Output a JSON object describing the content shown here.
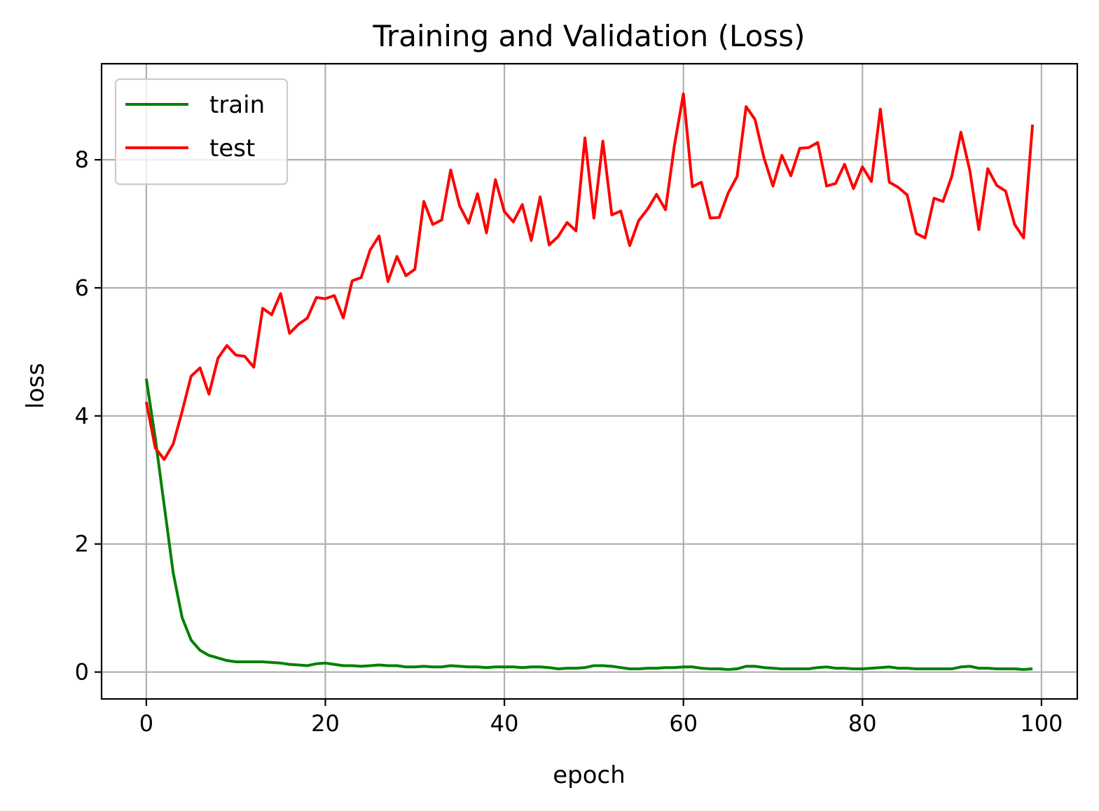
{
  "chart_data": {
    "type": "line",
    "title": "Training and Validation (Loss)",
    "xlabel": "epoch",
    "ylabel": "loss",
    "xlim": [
      -5,
      104
    ],
    "ylim": [
      -0.42,
      9.5
    ],
    "xticks": [
      0,
      20,
      40,
      60,
      80,
      100
    ],
    "yticks": [
      0,
      2,
      4,
      6,
      8
    ],
    "grid": true,
    "legend_position": "top-left",
    "series": [
      {
        "name": "train",
        "color": "#008000",
        "x": [
          0,
          1,
          2,
          3,
          4,
          5,
          6,
          7,
          8,
          9,
          10,
          11,
          12,
          13,
          14,
          15,
          16,
          17,
          18,
          19,
          20,
          21,
          22,
          23,
          24,
          25,
          26,
          27,
          28,
          29,
          30,
          31,
          32,
          33,
          34,
          35,
          36,
          37,
          38,
          39,
          40,
          41,
          42,
          43,
          44,
          45,
          46,
          47,
          48,
          49,
          50,
          51,
          52,
          53,
          54,
          55,
          56,
          57,
          58,
          59,
          60,
          61,
          62,
          63,
          64,
          65,
          66,
          67,
          68,
          69,
          70,
          71,
          72,
          73,
          74,
          75,
          76,
          77,
          78,
          79,
          80,
          81,
          82,
          83,
          84,
          85,
          86,
          87,
          88,
          89,
          90,
          91,
          92,
          93,
          94,
          95,
          96,
          97,
          98,
          99
        ],
        "values": [
          4.58,
          3.65,
          2.6,
          1.55,
          0.85,
          0.5,
          0.34,
          0.26,
          0.22,
          0.18,
          0.16,
          0.16,
          0.16,
          0.16,
          0.15,
          0.14,
          0.12,
          0.11,
          0.1,
          0.13,
          0.14,
          0.12,
          0.1,
          0.1,
          0.09,
          0.1,
          0.11,
          0.1,
          0.1,
          0.08,
          0.08,
          0.09,
          0.08,
          0.08,
          0.1,
          0.09,
          0.08,
          0.08,
          0.07,
          0.08,
          0.08,
          0.08,
          0.07,
          0.08,
          0.08,
          0.07,
          0.05,
          0.06,
          0.06,
          0.07,
          0.1,
          0.1,
          0.09,
          0.07,
          0.05,
          0.05,
          0.06,
          0.06,
          0.07,
          0.07,
          0.08,
          0.08,
          0.06,
          0.05,
          0.05,
          0.04,
          0.05,
          0.09,
          0.09,
          0.07,
          0.06,
          0.05,
          0.05,
          0.05,
          0.05,
          0.07,
          0.08,
          0.06,
          0.06,
          0.05,
          0.05,
          0.06,
          0.07,
          0.08,
          0.06,
          0.06,
          0.05,
          0.05,
          0.05,
          0.05,
          0.05,
          0.08,
          0.09,
          0.06,
          0.06,
          0.05,
          0.05,
          0.05,
          0.04,
          0.05
        ]
      },
      {
        "name": "test",
        "color": "#ff0000",
        "x": [
          0,
          1,
          2,
          3,
          4,
          5,
          6,
          7,
          8,
          9,
          10,
          11,
          12,
          13,
          14,
          15,
          16,
          17,
          18,
          19,
          20,
          21,
          22,
          23,
          24,
          25,
          26,
          27,
          28,
          29,
          30,
          31,
          32,
          33,
          34,
          35,
          36,
          37,
          38,
          39,
          40,
          41,
          42,
          43,
          44,
          45,
          46,
          47,
          48,
          49,
          50,
          51,
          52,
          53,
          54,
          55,
          56,
          57,
          58,
          59,
          60,
          61,
          62,
          63,
          64,
          65,
          66,
          67,
          68,
          69,
          70,
          71,
          72,
          73,
          74,
          75,
          76,
          77,
          78,
          79,
          80,
          81,
          82,
          83,
          84,
          85,
          86,
          87,
          88,
          89,
          90,
          91,
          92,
          93,
          94,
          95,
          96,
          97,
          98,
          99
        ],
        "values": [
          4.22,
          3.5,
          3.32,
          3.56,
          4.07,
          4.62,
          4.75,
          4.34,
          4.9,
          5.1,
          4.95,
          4.93,
          4.76,
          5.68,
          5.58,
          5.91,
          5.29,
          5.43,
          5.53,
          5.85,
          5.83,
          5.88,
          5.53,
          6.11,
          6.16,
          6.59,
          6.81,
          6.1,
          6.49,
          6.19,
          6.29,
          7.35,
          6.99,
          7.06,
          7.84,
          7.28,
          7.01,
          7.47,
          6.86,
          7.69,
          7.19,
          7.03,
          7.3,
          6.74,
          7.42,
          6.67,
          6.8,
          7.02,
          6.89,
          8.34,
          7.09,
          8.29,
          7.14,
          7.2,
          6.66,
          7.05,
          7.23,
          7.46,
          7.22,
          8.23,
          9.03,
          7.58,
          7.65,
          7.09,
          7.1,
          7.48,
          7.74,
          8.83,
          8.63,
          8.03,
          7.59,
          8.07,
          7.75,
          8.18,
          8.19,
          8.27,
          7.59,
          7.63,
          7.93,
          7.55,
          7.89,
          7.66,
          8.79,
          7.65,
          7.57,
          7.45,
          6.85,
          6.78,
          7.4,
          7.35,
          7.75,
          8.43,
          7.83,
          6.91,
          7.86,
          7.6,
          7.51,
          6.99,
          6.78,
          8.55
        ]
      }
    ]
  }
}
